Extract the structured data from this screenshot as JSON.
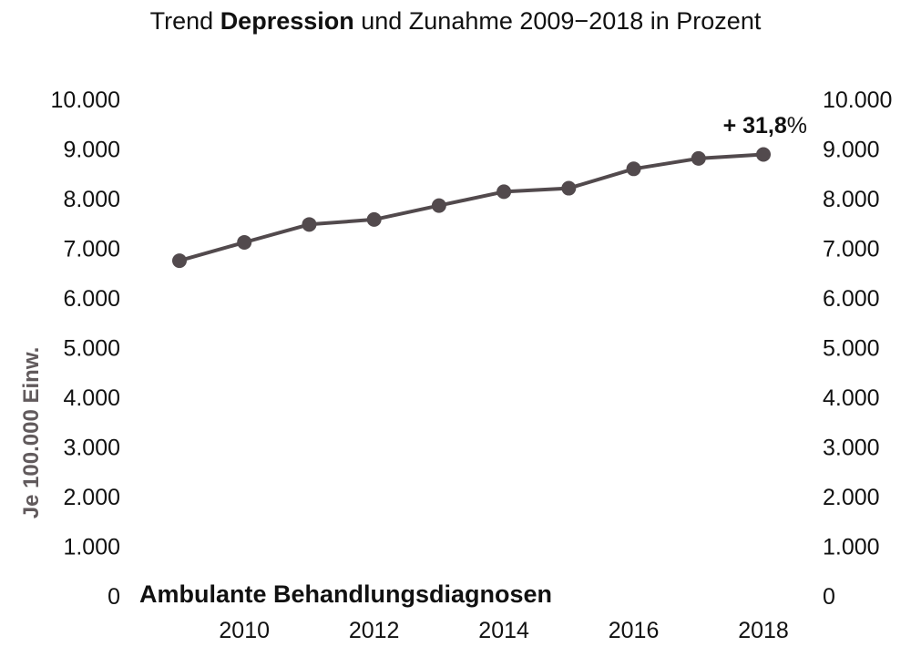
{
  "title": {
    "prefix": "Trend ",
    "bold": "Depression",
    "suffix": " und Zunahme 2009−2018 in Prozent"
  },
  "colors": {
    "line": "#524a4d",
    "ylabel": "#615a5c"
  },
  "chart_data": {
    "type": "line",
    "title": "Trend Depression und Zunahme 2009−2018 in Prozent",
    "ylabel": "Je 100.000 Einw.",
    "xlabel": "",
    "series_label": "Ambulante Behandlungsdiagnosen",
    "annotation": {
      "bold": "+ 31,8",
      "suffix": "%"
    },
    "y_ticks": [
      "0",
      "1.000",
      "2.000",
      "3.000",
      "4.000",
      "5.000",
      "6.000",
      "7.000",
      "8.000",
      "9.000",
      "10.000"
    ],
    "x_ticks": [
      "2010",
      "2012",
      "2014",
      "2016",
      "2018"
    ],
    "ylim": [
      0,
      10000
    ],
    "xlim": [
      2009,
      2018
    ],
    "grid": false,
    "series": [
      {
        "name": "Ambulante Behandlungsdiagnosen",
        "x": [
          2009,
          2010,
          2011,
          2012,
          2013,
          2014,
          2015,
          2016,
          2017,
          2018
        ],
        "y": [
          6750,
          7120,
          7480,
          7580,
          7860,
          8140,
          8210,
          8600,
          8810,
          8890
        ]
      }
    ]
  }
}
